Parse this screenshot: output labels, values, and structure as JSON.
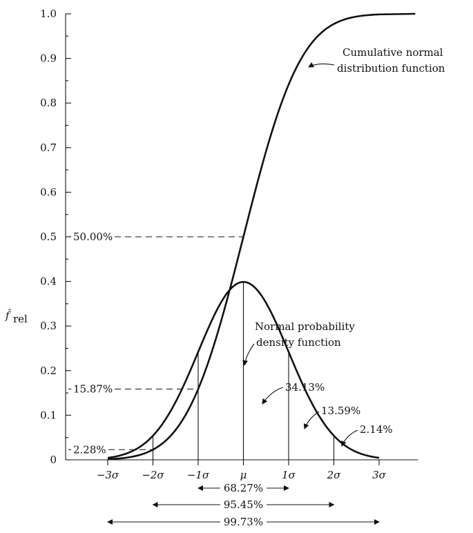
{
  "chart_data": {
    "type": "line",
    "y_axis": {
      "label_main": "f̂",
      "label_sub": "rel",
      "ylim": [
        0,
        1.0
      ],
      "ticks": [
        0,
        0.1,
        0.2,
        0.3,
        0.4,
        0.5,
        0.6,
        0.7,
        0.8,
        0.9,
        1.0
      ],
      "tick_labels": [
        "0",
        "0.1",
        "0.2",
        "0.3",
        "0.4",
        "0.5",
        "0.6",
        "0.7",
        "0.8",
        "0.9",
        "1.0"
      ]
    },
    "x_axis": {
      "xlim": [
        -4,
        3.8
      ],
      "ticks": [
        -3,
        -2,
        -1,
        0,
        1,
        2,
        3
      ],
      "tick_labels": [
        "−3σ",
        "−2σ",
        "−1σ",
        "μ",
        "1σ",
        "2σ",
        "3σ"
      ]
    },
    "series": [
      {
        "name": "Cumulative normal distribution function",
        "x": [
          -3,
          -2.5,
          -2,
          -1.5,
          -1,
          -0.5,
          0,
          0.5,
          1,
          1.5,
          2,
          2.5,
          3,
          3.8
        ],
        "y": [
          0.0013,
          0.0062,
          0.0228,
          0.0668,
          0.1587,
          0.3085,
          0.5,
          0.6915,
          0.8413,
          0.9332,
          0.9772,
          0.9938,
          1.0,
          1.0
        ]
      },
      {
        "name": "Normal probability density function",
        "x": [
          -3,
          -2.5,
          -2,
          -1.5,
          -1,
          -0.5,
          0,
          0.5,
          1,
          1.5,
          2,
          2.5,
          3
        ],
        "y": [
          0.0044,
          0.0175,
          0.054,
          0.1295,
          0.242,
          0.3521,
          0.3989,
          0.3521,
          0.242,
          0.1295,
          0.054,
          0.0175,
          0.0044
        ]
      }
    ],
    "reference_lines": [
      {
        "label": "50.00%",
        "y": 0.5
      },
      {
        "label": "15.87%",
        "y": 0.1587
      },
      {
        "label": "2.28%",
        "y": 0.0228
      }
    ],
    "area_labels": [
      "34.13%",
      "13.59%",
      "2.14%"
    ],
    "curve_labels": [
      {
        "lines": [
          "Cumulative normal",
          "distribution function"
        ]
      },
      {
        "lines": [
          "Normal probability",
          "density function"
        ]
      }
    ],
    "ranges": [
      {
        "label": "68.27%",
        "from": -1,
        "to": 1
      },
      {
        "label": "95.45%",
        "from": -2,
        "to": 2
      },
      {
        "label": "99.73%",
        "from": -3,
        "to": 3
      }
    ]
  }
}
